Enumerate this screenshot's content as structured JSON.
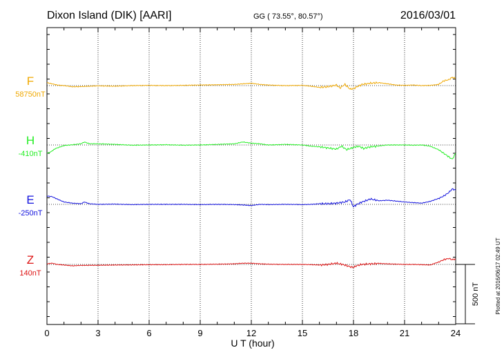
{
  "header": {
    "station": "Dixon Island (DIK)  [AARI]",
    "coords": "GG ( 73.55°,  80.57°)",
    "date": "2016/03/01"
  },
  "footer_note": "Plotted at 2016/06/17 02:49 UT",
  "chart_data": {
    "type": "line",
    "xlabel": "U T (hour)",
    "xlim": [
      0,
      24
    ],
    "xticks": [
      0,
      3,
      6,
      9,
      12,
      15,
      18,
      21,
      24
    ],
    "xtick_labels": [
      "0",
      "3",
      "6",
      "9",
      "12",
      "15",
      "18",
      "21",
      "24"
    ],
    "scale_bar": {
      "label": "500 nT",
      "nT": 500
    },
    "grid": true,
    "series": [
      {
        "name": "F",
        "baseline_label": "58750nT",
        "baseline_nT": 58750,
        "color": "#f0a800",
        "x": [
          0,
          0.3,
          0.6,
          1,
          1.5,
          2,
          2.5,
          3,
          4,
          5,
          6,
          7,
          8,
          9,
          10,
          11,
          11.5,
          12,
          12.5,
          13,
          13.5,
          14,
          15,
          15.5,
          16,
          16.5,
          17,
          17.2,
          17.5,
          17.8,
          18,
          18.2,
          18.5,
          19,
          19.5,
          20,
          20.5,
          21,
          21.5,
          22,
          22.5,
          23,
          23.3,
          23.6,
          23.8,
          24
        ],
        "values_nT": [
          58775,
          58765,
          58755,
          58750,
          58740,
          58742,
          58745,
          58748,
          58745,
          58750,
          58752,
          58750,
          58752,
          58755,
          58757,
          58760,
          58765,
          58770,
          58760,
          58755,
          58752,
          58750,
          58752,
          58745,
          58735,
          58740,
          58755,
          58730,
          58760,
          58720,
          58725,
          58740,
          58760,
          58770,
          58775,
          58765,
          58755,
          58752,
          58755,
          58750,
          58752,
          58760,
          58790,
          58800,
          58820,
          58810
        ]
      },
      {
        "name": "H",
        "baseline_label": "-410nT",
        "baseline_nT": -410,
        "color": "#22ee22",
        "x": [
          0,
          0.2,
          0.5,
          1,
          1.5,
          2,
          2.2,
          2.5,
          3,
          4,
          5,
          6,
          7,
          8,
          9,
          10,
          11,
          11.5,
          12,
          12.5,
          13,
          14,
          15,
          15.5,
          16,
          16.5,
          17,
          17.3,
          17.6,
          18,
          18.3,
          18.6,
          19,
          19.5,
          20,
          21,
          21.5,
          22,
          22.5,
          23,
          23.5,
          23.8,
          24
        ],
        "values_nT": [
          -480,
          -470,
          -440,
          -415,
          -408,
          -400,
          -385,
          -400,
          -400,
          -405,
          -412,
          -410,
          -408,
          -412,
          -410,
          -405,
          -400,
          -385,
          -395,
          -400,
          -410,
          -405,
          -410,
          -420,
          -425,
          -435,
          -445,
          -420,
          -450,
          -430,
          -420,
          -440,
          -425,
          -418,
          -410,
          -410,
          -412,
          -410,
          -420,
          -450,
          -500,
          -530,
          -480
        ]
      },
      {
        "name": "E",
        "baseline_label": "-250nT",
        "baseline_nT": -250,
        "color": "#1010dd",
        "x": [
          0,
          0.3,
          0.6,
          1,
          1.5,
          2,
          2.2,
          2.5,
          3,
          4,
          5,
          6,
          7,
          8,
          9,
          10,
          11,
          11.5,
          12,
          12.5,
          13,
          14,
          15,
          15.5,
          16,
          16.5,
          17,
          17.5,
          17.8,
          18,
          18.2,
          18.5,
          19,
          19.5,
          20,
          21,
          21.5,
          22,
          22.5,
          23,
          23.3,
          23.6,
          23.8,
          24
        ],
        "values_nT": [
          -180,
          -185,
          -205,
          -230,
          -240,
          -245,
          -230,
          -245,
          -250,
          -248,
          -252,
          -250,
          -250,
          -250,
          -252,
          -250,
          -252,
          -255,
          -260,
          -250,
          -252,
          -250,
          -252,
          -250,
          -245,
          -245,
          -240,
          -230,
          -210,
          -270,
          -250,
          -230,
          -205,
          -220,
          -215,
          -230,
          -235,
          -240,
          -225,
          -200,
          -180,
          -150,
          -120,
          -130
        ]
      },
      {
        "name": "Z",
        "baseline_label": "140nT",
        "baseline_nT": 140,
        "color": "#dd1111",
        "x": [
          0,
          0.3,
          0.6,
          1,
          1.5,
          2,
          3,
          4,
          5,
          6,
          7,
          8,
          9,
          10,
          11,
          11.5,
          12,
          12.5,
          13,
          14,
          15,
          15.5,
          16,
          16.5,
          17,
          17.5,
          17.8,
          18,
          18.2,
          18.5,
          19,
          19.5,
          20,
          21,
          21.5,
          22,
          22.5,
          23,
          23.3,
          23.6,
          23.8,
          24
        ],
        "values_nT": [
          145,
          150,
          140,
          135,
          128,
          132,
          133,
          135,
          136,
          138,
          138,
          140,
          140,
          142,
          145,
          150,
          150,
          145,
          142,
          140,
          140,
          138,
          135,
          140,
          150,
          135,
          120,
          115,
          130,
          140,
          145,
          148,
          145,
          140,
          140,
          138,
          135,
          160,
          180,
          190,
          180,
          185
        ]
      }
    ]
  }
}
